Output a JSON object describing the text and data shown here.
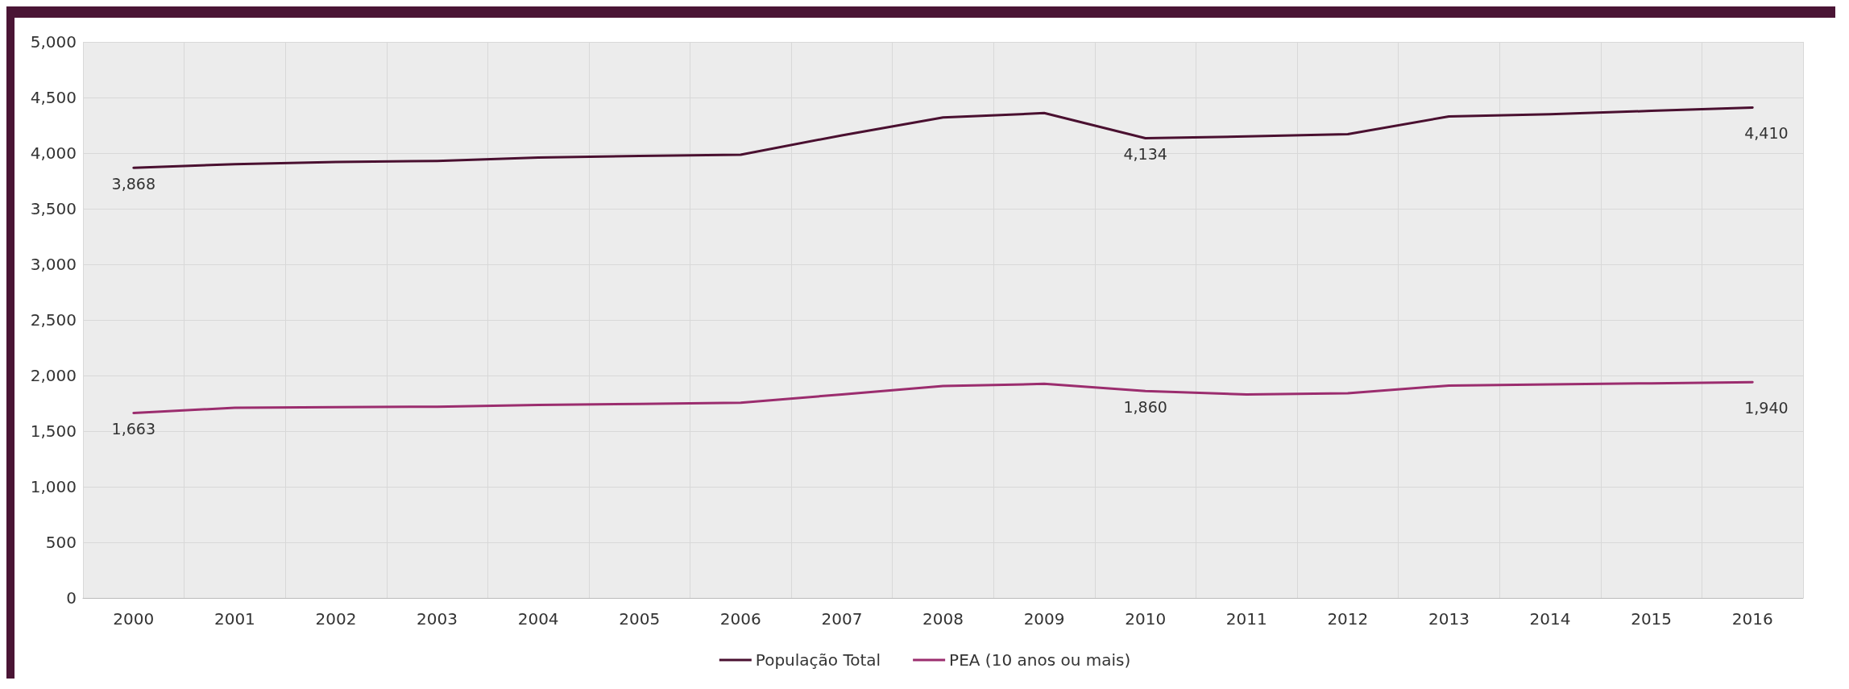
{
  "chart_data": {
    "type": "line",
    "categories": [
      "2000",
      "2001",
      "2002",
      "2003",
      "2004",
      "2005",
      "2006",
      "2007",
      "2008",
      "2009",
      "2010",
      "2011",
      "2012",
      "2013",
      "2014",
      "2015",
      "2016"
    ],
    "series": [
      {
        "name": "População Total",
        "color": "#4a1030",
        "values": [
          3868,
          3900,
          3920,
          3930,
          3960,
          3975,
          3985,
          4160,
          4320,
          4360,
          4134,
          4150,
          4170,
          4330,
          4350,
          4380,
          4410
        ],
        "value_labels": [
          "3,868",
          null,
          null,
          null,
          null,
          null,
          null,
          null,
          null,
          null,
          "4,134",
          null,
          null,
          null,
          null,
          null,
          "4,410"
        ]
      },
      {
        "name": "PEA (10 anos ou mais)",
        "color": "#9b2d6e",
        "values": [
          1663,
          1710,
          1715,
          1720,
          1735,
          1745,
          1755,
          1830,
          1905,
          1925,
          1860,
          1830,
          1840,
          1910,
          1920,
          1930,
          1940
        ],
        "value_labels": [
          "1,663",
          null,
          null,
          null,
          null,
          null,
          null,
          null,
          null,
          null,
          "1,860",
          null,
          null,
          null,
          null,
          null,
          "1,940"
        ]
      }
    ],
    "ylim": [
      0,
      5000
    ],
    "yticks": [
      0,
      500,
      {
        "value": 1000,
        "label": "1,000"
      },
      {
        "value": 1500,
        "label": "1,500"
      },
      {
        "value": 2000,
        "label": "2,000"
      },
      {
        "value": 2500,
        "label": "2,500"
      },
      {
        "value": 3000,
        "label": "3,000"
      },
      {
        "value": 3500,
        "label": "3,500"
      },
      {
        "value": 4000,
        "label": "4,000"
      },
      {
        "value": 4500,
        "label": "4,500"
      },
      {
        "value": 5000,
        "label": "5,000"
      }
    ],
    "grid": true,
    "legend": "bottom",
    "marker": "none",
    "line_style": "solid"
  }
}
